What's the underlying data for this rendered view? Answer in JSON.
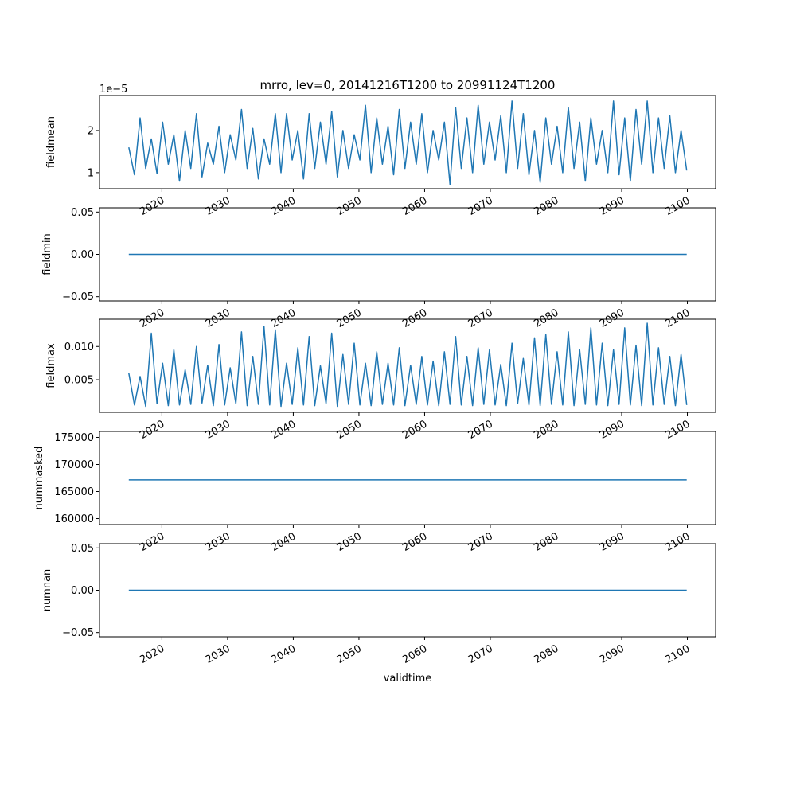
{
  "chart_data": {
    "type": "line",
    "title": "mrro, lev=0, 20141216T1200 to 20991124T1200",
    "xlabel": "validtime",
    "x_start": 2014.96,
    "x_end": 2099.9,
    "xlim": [
      2010.5,
      2104.3
    ],
    "xticks": [
      2020,
      2030,
      2040,
      2050,
      2060,
      2070,
      2080,
      2090,
      2100
    ],
    "xtick_labels": [
      "2020",
      "2030",
      "2040",
      "2050",
      "2060",
      "2070",
      "2080",
      "2090",
      "2100"
    ],
    "color": "#1f77b4",
    "panels": [
      {
        "ylabel": "fieldmean",
        "offset_label": "1e−5",
        "ylim": [
          0.62,
          2.83
        ],
        "yticks": [
          1,
          2
        ],
        "ytick_labels": [
          "1",
          "2"
        ],
        "values": [
          1.6,
          0.95,
          2.3,
          1.1,
          1.8,
          0.98,
          2.2,
          1.2,
          1.9,
          0.8,
          2.0,
          1.1,
          2.4,
          0.9,
          1.7,
          1.2,
          2.1,
          1.0,
          1.9,
          1.3,
          2.5,
          1.1,
          2.05,
          0.85,
          1.8,
          1.2,
          2.4,
          1.0,
          2.4,
          1.3,
          2.0,
          0.85,
          2.4,
          1.1,
          2.2,
          1.2,
          2.45,
          0.9,
          2.0,
          1.1,
          1.9,
          1.3,
          2.6,
          1.0,
          2.3,
          1.2,
          2.1,
          0.95,
          2.5,
          1.1,
          2.2,
          1.2,
          2.4,
          1.0,
          2.0,
          1.3,
          2.2,
          0.72,
          2.55,
          1.1,
          2.3,
          1.0,
          2.6,
          1.2,
          2.2,
          1.3,
          2.35,
          1.0,
          2.7,
          1.1,
          2.4,
          0.95,
          2.0,
          0.77,
          2.3,
          1.2,
          2.1,
          1.0,
          2.55,
          1.1,
          2.2,
          0.8,
          2.3,
          1.2,
          2.0,
          1.0,
          2.7,
          0.95,
          2.3,
          0.8,
          2.5,
          1.2,
          2.7,
          1.0,
          2.3,
          1.1,
          2.35,
          1.0,
          2.0,
          1.05
        ],
        "name": "fieldmean"
      },
      {
        "ylabel": "fieldmin",
        "ylim": [
          -0.055,
          0.055
        ],
        "yticks": [
          -0.05,
          0.0,
          0.05
        ],
        "ytick_labels": [
          "−0.05",
          "0.00",
          "0.05"
        ],
        "constant": 0.0,
        "name": "fieldmin"
      },
      {
        "ylabel": "fieldmax",
        "ylim": [
          0.0001,
          0.0141
        ],
        "yticks": [
          0.005,
          0.01
        ],
        "ytick_labels": [
          "0.005",
          "0.010"
        ],
        "values": [
          0.006,
          0.0012,
          0.0055,
          0.001,
          0.012,
          0.0014,
          0.0075,
          0.0011,
          0.0095,
          0.0012,
          0.0065,
          0.0013,
          0.01,
          0.0015,
          0.0072,
          0.0011,
          0.0103,
          0.0012,
          0.0068,
          0.0014,
          0.0122,
          0.0011,
          0.0085,
          0.0013,
          0.013,
          0.0012,
          0.0125,
          0.001,
          0.0075,
          0.0013,
          0.0098,
          0.0012,
          0.0115,
          0.0011,
          0.0071,
          0.0014,
          0.012,
          0.001,
          0.0088,
          0.0013,
          0.0105,
          0.0012,
          0.0075,
          0.0011,
          0.0092,
          0.0013,
          0.0075,
          0.0012,
          0.0098,
          0.0011,
          0.0072,
          0.0013,
          0.0085,
          0.0012,
          0.0078,
          0.0011,
          0.0092,
          0.0013,
          0.0115,
          0.0012,
          0.0085,
          0.0011,
          0.0098,
          0.0013,
          0.0095,
          0.0012,
          0.0073,
          0.0011,
          0.0105,
          0.0014,
          0.0082,
          0.0012,
          0.0113,
          0.0011,
          0.0118,
          0.0013,
          0.0092,
          0.0012,
          0.0122,
          0.0011,
          0.0095,
          0.0013,
          0.0128,
          0.0012,
          0.0105,
          0.0011,
          0.0095,
          0.0013,
          0.0128,
          0.0012,
          0.0102,
          0.0011,
          0.0135,
          0.0012,
          0.0098,
          0.0013,
          0.0085,
          0.0011,
          0.0088,
          0.0012
        ],
        "name": "fieldmax"
      },
      {
        "ylabel": "nummasked",
        "ylim": [
          158900,
          176100
        ],
        "yticks": [
          160000,
          165000,
          170000,
          175000
        ],
        "ytick_labels": [
          "160000",
          "165000",
          "170000",
          "175000"
        ],
        "constant": 167150,
        "name": "nummasked"
      },
      {
        "ylabel": "numnan",
        "ylim": [
          -0.055,
          0.055
        ],
        "yticks": [
          -0.05,
          0.0,
          0.05
        ],
        "ytick_labels": [
          "−0.05",
          "0.00",
          "0.05"
        ],
        "constant": 0.0,
        "name": "numnan"
      }
    ]
  }
}
